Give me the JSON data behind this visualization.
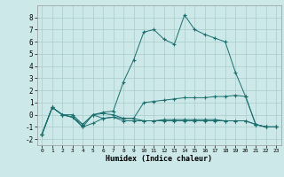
{
  "xlabel": "Humidex (Indice chaleur)",
  "bg_color": "#cce8e8",
  "grid_color": "#aacccc",
  "line_color": "#1a6e6e",
  "xlim": [
    -0.5,
    23.5
  ],
  "ylim": [
    -2.5,
    9.0
  ],
  "xticks": [
    0,
    1,
    2,
    3,
    4,
    5,
    6,
    7,
    8,
    9,
    10,
    11,
    12,
    13,
    14,
    15,
    16,
    17,
    18,
    19,
    20,
    21,
    22,
    23
  ],
  "yticks": [
    -2,
    -1,
    0,
    1,
    2,
    3,
    4,
    5,
    6,
    7,
    8
  ],
  "series": [
    {
      "x": [
        0,
        1,
        2,
        3,
        4,
        5,
        6,
        7,
        8,
        9,
        10,
        11,
        12,
        13,
        14,
        15,
        16,
        17,
        18,
        19,
        20,
        21,
        22,
        23
      ],
      "y": [
        -1.6,
        0.6,
        0.0,
        0.0,
        -0.8,
        0.0,
        0.2,
        0.3,
        2.7,
        4.5,
        6.8,
        7.0,
        6.2,
        5.8,
        8.2,
        7.0,
        6.6,
        6.3,
        6.0,
        3.5,
        1.5,
        -0.8,
        -1.0,
        -1.0
      ]
    },
    {
      "x": [
        0,
        1,
        2,
        3,
        4,
        5,
        6,
        7,
        8,
        9,
        10,
        11,
        12,
        13,
        14,
        15,
        16,
        17,
        18,
        19,
        20,
        21,
        22,
        23
      ],
      "y": [
        -1.6,
        0.6,
        0.0,
        -0.2,
        -0.8,
        0.0,
        0.1,
        0.0,
        -0.3,
        -0.3,
        1.0,
        1.1,
        1.2,
        1.3,
        1.4,
        1.4,
        1.4,
        1.5,
        1.5,
        1.6,
        1.5,
        -0.8,
        -1.0,
        -1.0
      ]
    },
    {
      "x": [
        0,
        1,
        2,
        3,
        4,
        5,
        6,
        7,
        8,
        9,
        10,
        11,
        12,
        13,
        14,
        15,
        16,
        17,
        18,
        19,
        20,
        21,
        22,
        23
      ],
      "y": [
        -1.6,
        0.6,
        0.0,
        -0.2,
        -1.0,
        0.0,
        -0.3,
        -0.2,
        -0.3,
        -0.3,
        -0.5,
        -0.5,
        -0.4,
        -0.4,
        -0.4,
        -0.4,
        -0.4,
        -0.4,
        -0.5,
        -0.5,
        -0.5,
        -0.8,
        -1.0,
        -1.0
      ]
    },
    {
      "x": [
        0,
        1,
        2,
        3,
        4,
        5,
        6,
        7,
        8,
        9,
        10,
        11,
        12,
        13,
        14,
        15,
        16,
        17,
        18,
        19,
        20,
        21,
        22,
        23
      ],
      "y": [
        -1.6,
        0.6,
        0.0,
        -0.2,
        -1.0,
        -0.7,
        -0.3,
        -0.2,
        -0.5,
        -0.5,
        -0.5,
        -0.5,
        -0.5,
        -0.5,
        -0.5,
        -0.5,
        -0.5,
        -0.5,
        -0.5,
        -0.5,
        -0.5,
        -0.8,
        -1.0,
        -1.0
      ]
    }
  ]
}
